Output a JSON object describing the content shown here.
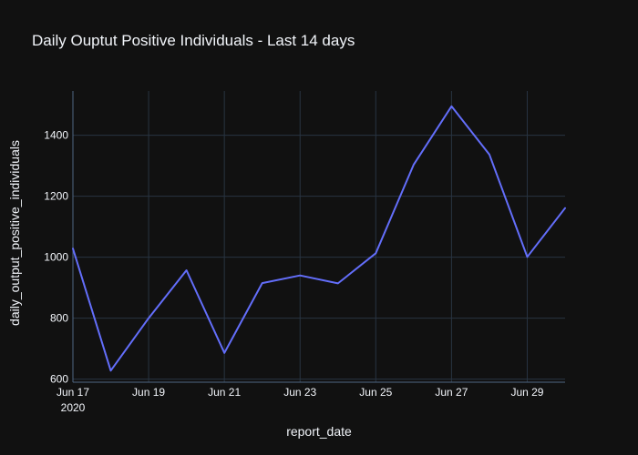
{
  "chart_data": {
    "type": "line",
    "title": "Daily Ouptut Positive Individuals - Last 14 days",
    "xlabel": "report_date",
    "ylabel": "daily_output_positive_individuals",
    "x": [
      "2020-06-17",
      "2020-06-18",
      "2020-06-19",
      "2020-06-20",
      "2020-06-21",
      "2020-06-22",
      "2020-06-23",
      "2020-06-24",
      "2020-06-25",
      "2020-06-26",
      "2020-06-27",
      "2020-06-28",
      "2020-06-29",
      "2020-06-30"
    ],
    "xlim": [
      "2020-06-17",
      "2020-06-30"
    ],
    "x_ticks": [
      {
        "date": "2020-06-17",
        "label": "Jun 17",
        "sublabel": "2020"
      },
      {
        "date": "2020-06-19",
        "label": "Jun 19"
      },
      {
        "date": "2020-06-21",
        "label": "Jun 21"
      },
      {
        "date": "2020-06-23",
        "label": "Jun 23"
      },
      {
        "date": "2020-06-25",
        "label": "Jun 25"
      },
      {
        "date": "2020-06-27",
        "label": "Jun 27"
      },
      {
        "date": "2020-06-29",
        "label": "Jun 29"
      }
    ],
    "ylim": [
      590,
      1545
    ],
    "y_ticks": [
      600,
      800,
      1000,
      1200,
      1400
    ],
    "grid": true,
    "series": [
      {
        "values": [
          1028,
          628,
          800,
          957,
          686,
          915,
          940,
          914,
          1013,
          1303,
          1495,
          1337,
          1001,
          1161
        ],
        "color": "#636efa"
      }
    ]
  },
  "colors": {
    "background": "#111111",
    "grid": "#283442",
    "text": "#f2f5fa",
    "series": "#636efa"
  }
}
